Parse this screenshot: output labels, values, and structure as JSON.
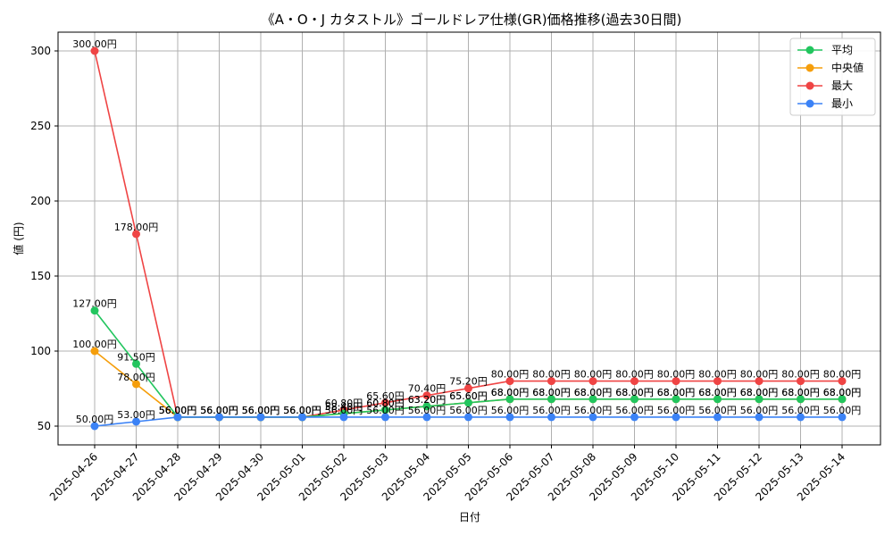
{
  "chart_data": {
    "type": "line",
    "title": "《A・O・J カタストル》ゴールドレア仕様(GR)価格推移(過去30日間)",
    "xlabel": "日付",
    "ylabel": "値 (円)",
    "ylim": [
      37.5,
      312.5
    ],
    "yticks": [
      50,
      100,
      150,
      200,
      250,
      300
    ],
    "grid": true,
    "legend_position": "top-right",
    "value_suffix": "円",
    "categories": [
      "2025-04-26",
      "2025-04-27",
      "2025-04-28",
      "2025-04-29",
      "2025-04-30",
      "2025-05-01",
      "2025-05-02",
      "2025-05-03",
      "2025-05-04",
      "2025-05-05",
      "2025-05-06",
      "2025-05-07",
      "2025-05-08",
      "2025-05-09",
      "2025-05-10",
      "2025-05-11",
      "2025-05-12",
      "2025-05-13",
      "2025-05-14"
    ],
    "series": [
      {
        "name": "最大",
        "color": "#ef4444",
        "values": [
          300,
          178,
          56,
          56,
          56,
          56,
          60.8,
          65.6,
          70.4,
          75.2,
          80,
          80,
          80,
          80,
          80,
          80,
          80,
          80,
          80
        ]
      },
      {
        "name": "中央値",
        "color": "#f59e0b",
        "values": [
          100,
          78,
          56,
          56,
          56,
          56,
          58.4,
          60.8,
          63.2,
          65.6,
          68,
          68,
          68,
          68,
          68,
          68,
          68,
          68,
          68
        ]
      },
      {
        "name": "平均",
        "color": "#22c55e",
        "values": [
          127,
          91.5,
          56,
          56,
          56,
          56,
          58.4,
          60.8,
          63.2,
          65.6,
          68,
          68,
          68,
          68,
          68,
          68,
          68,
          68,
          68
        ]
      },
      {
        "name": "最小",
        "color": "#3b82f6",
        "values": [
          50,
          53,
          56,
          56,
          56,
          56,
          56,
          56,
          56,
          56,
          56,
          56,
          56,
          56,
          56,
          56,
          56,
          56,
          56
        ]
      }
    ],
    "legend_order": [
      "平均",
      "中央値",
      "最大",
      "最小"
    ]
  }
}
